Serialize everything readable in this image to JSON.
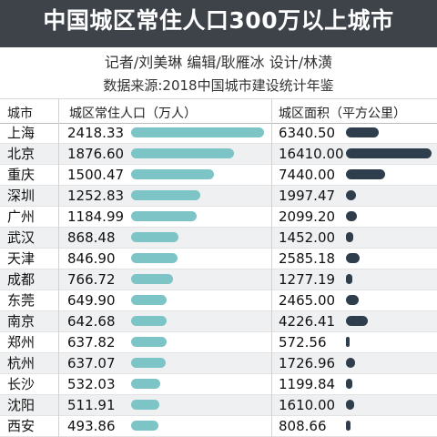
{
  "title": "中国城区常住人口300万以上城市",
  "credits": "记者/刘美琳  编辑/耿雁冰  设计/林潢",
  "source": "数据来源:2018中国城市建设统计年鉴",
  "header": {
    "city": "城市",
    "population": "城区常住人口（万人）",
    "area": "城区面积（平方公里）"
  },
  "colors": {
    "banner": "#3d4349",
    "population_bar": "#7cc4c5",
    "area_bar": "#2f3e4c"
  },
  "rows": [
    {
      "city": "上海",
      "pop": "2418.33",
      "area": "6340.50"
    },
    {
      "city": "北京",
      "pop": "1876.60",
      "area": "16410.00"
    },
    {
      "city": "重庆",
      "pop": "1500.47",
      "area": "7440.00"
    },
    {
      "city": "深圳",
      "pop": "1252.83",
      "area": "1997.47"
    },
    {
      "city": "广州",
      "pop": "1184.99",
      "area": "2099.20"
    },
    {
      "city": "武汉",
      "pop": "868.48",
      "area": "1452.00"
    },
    {
      "city": "天津",
      "pop": "846.90",
      "area": "2585.18"
    },
    {
      "city": "成都",
      "pop": "766.72",
      "area": "1277.19"
    },
    {
      "city": "东莞",
      "pop": "649.90",
      "area": "2465.00"
    },
    {
      "city": "南京",
      "pop": "642.68",
      "area": "4226.41"
    },
    {
      "city": "郑州",
      "pop": "637.82",
      "area": "572.56"
    },
    {
      "city": "杭州",
      "pop": "637.07",
      "area": "1726.96"
    },
    {
      "city": "长沙",
      "pop": "532.03",
      "area": "1199.84"
    },
    {
      "city": "沈阳",
      "pop": "511.91",
      "area": "1610.00"
    },
    {
      "city": "西安",
      "pop": "493.86",
      "area": "808.66"
    }
  ],
  "chart_data": {
    "type": "bar",
    "categories": [
      "上海",
      "北京",
      "重庆",
      "深圳",
      "广州",
      "武汉",
      "天津",
      "成都",
      "东莞",
      "南京",
      "郑州",
      "杭州",
      "长沙",
      "沈阳",
      "西安"
    ],
    "series": [
      {
        "name": "城区常住人口（万人）",
        "values": [
          2418.33,
          1876.6,
          1500.47,
          1252.83,
          1184.99,
          868.48,
          846.9,
          766.72,
          649.9,
          642.68,
          637.82,
          637.07,
          532.03,
          511.91,
          493.86
        ]
      },
      {
        "name": "城区面积（平方公里）",
        "values": [
          6340.5,
          16410.0,
          7440.0,
          1997.47,
          2099.2,
          1452.0,
          2585.18,
          1277.19,
          2465.0,
          4226.41,
          572.56,
          1726.96,
          1199.84,
          1610.0,
          808.66
        ]
      }
    ],
    "title": "中国城区常住人口300万以上城市"
  }
}
